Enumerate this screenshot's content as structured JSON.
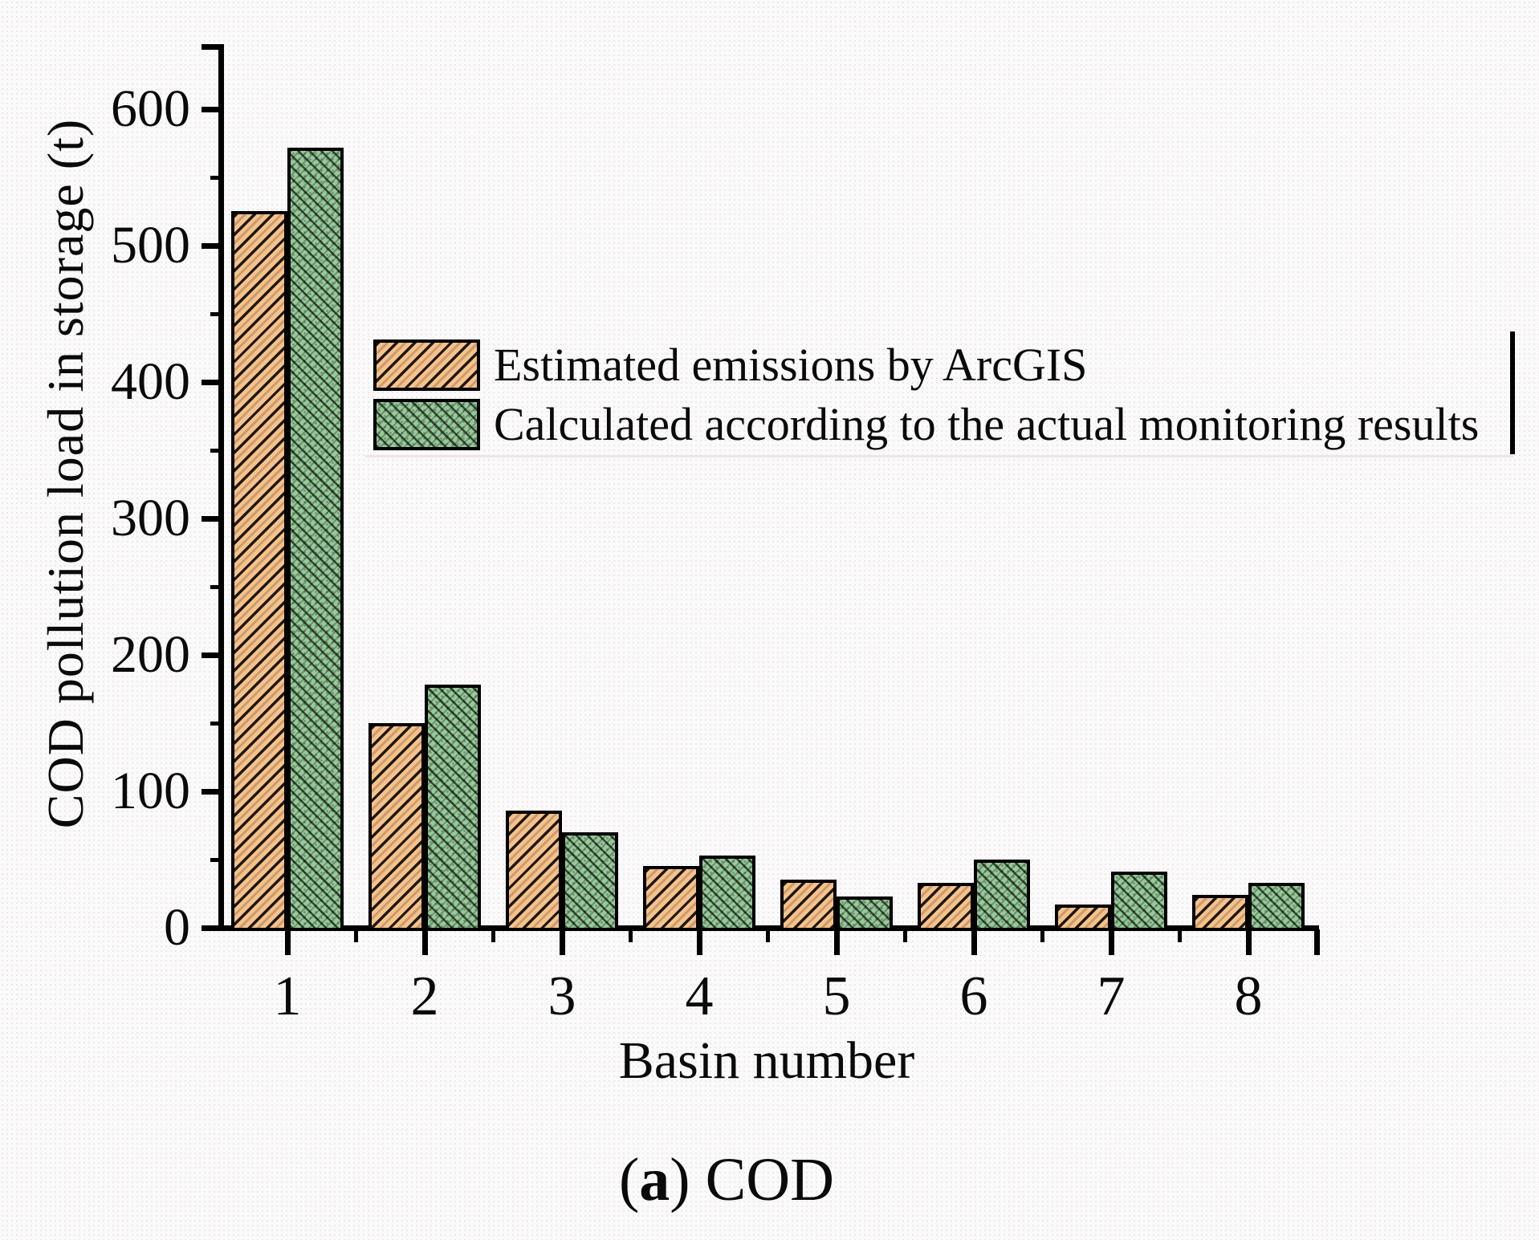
{
  "figure": {
    "caption": {
      "open": "(",
      "letter": "a",
      "rest": ") COD"
    }
  },
  "chart_data": {
    "type": "bar",
    "title": "",
    "xlabel": "Basin number",
    "ylabel": "COD pollution load in storage (t)",
    "categories": [
      "1",
      "2",
      "3",
      "4",
      "5",
      "6",
      "7",
      "8"
    ],
    "series": [
      {
        "name": "Estimated emissions by ArcGIS",
        "color": "#f6c28c",
        "hatch": "forward-diagonal",
        "values": [
          525,
          150,
          86,
          45,
          35,
          33,
          17,
          24
        ]
      },
      {
        "name": "Calculated according to the actual monitoring results",
        "color": "#96ca98",
        "hatch": "cross-diagonal-dotted",
        "values": [
          572,
          178,
          70,
          53,
          23,
          50,
          41,
          33
        ]
      }
    ],
    "ylim": [
      0,
      650
    ],
    "y_major_ticks": [
      0,
      100,
      200,
      300,
      400,
      500,
      600
    ],
    "y_minor_ticks": [
      50,
      150,
      250,
      350,
      450,
      550
    ],
    "grid": false,
    "legend_position": "inside-upper-middle",
    "axis_color": "#000000"
  }
}
